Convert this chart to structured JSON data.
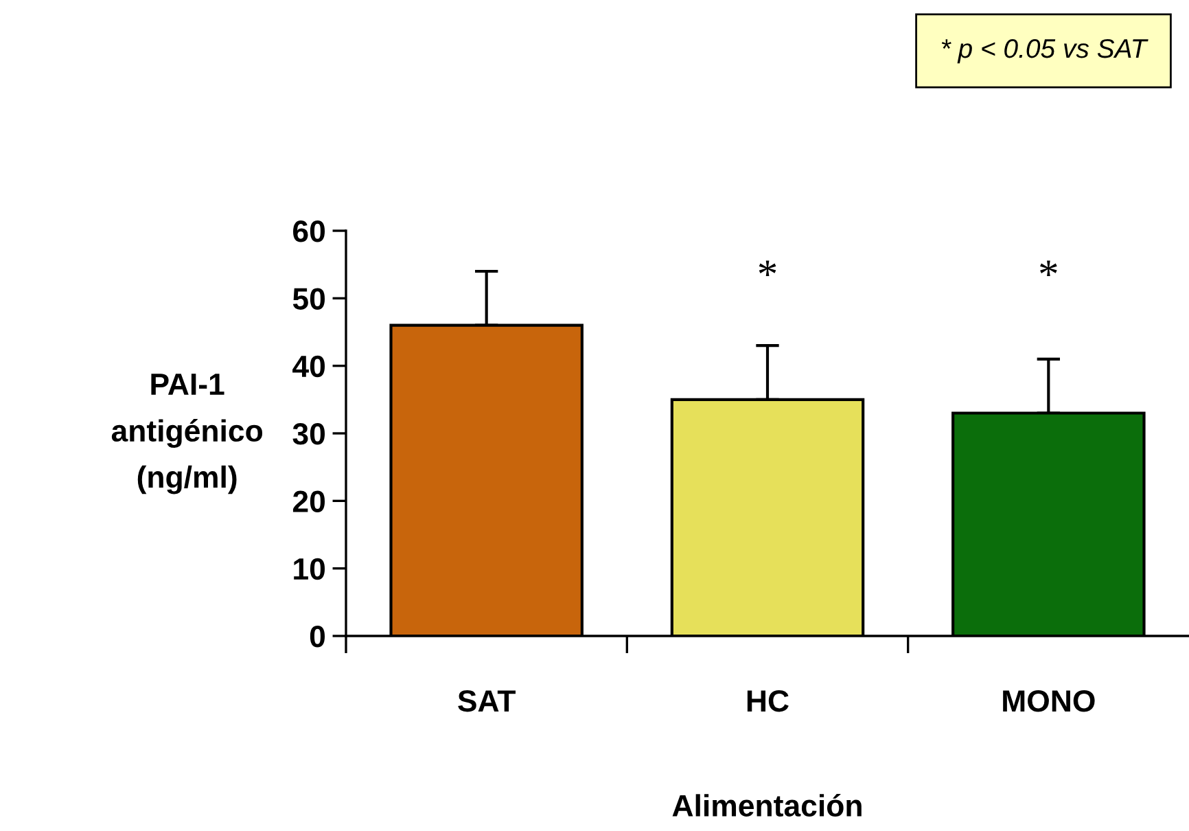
{
  "chart_data": {
    "type": "bar",
    "categories": [
      "SAT",
      "HC",
      "MONO"
    ],
    "values": [
      46,
      35,
      33
    ],
    "errors": [
      [
        46,
        54
      ],
      [
        35,
        43
      ],
      [
        33,
        41
      ]
    ],
    "colors": [
      "#c8650c",
      "#e6e05a",
      "#0b6e0b"
    ],
    "ylim": [
      0,
      60
    ],
    "yticks": [
      0,
      10,
      20,
      30,
      40,
      50,
      60
    ],
    "xlabel": "Alimentación",
    "ylabel": "PAI-1\nantigénico\n(ng/ml)",
    "annotations": [
      "* p < 0.05 vs SAT",
      "*",
      "*"
    ],
    "grid": false,
    "legend": false
  }
}
